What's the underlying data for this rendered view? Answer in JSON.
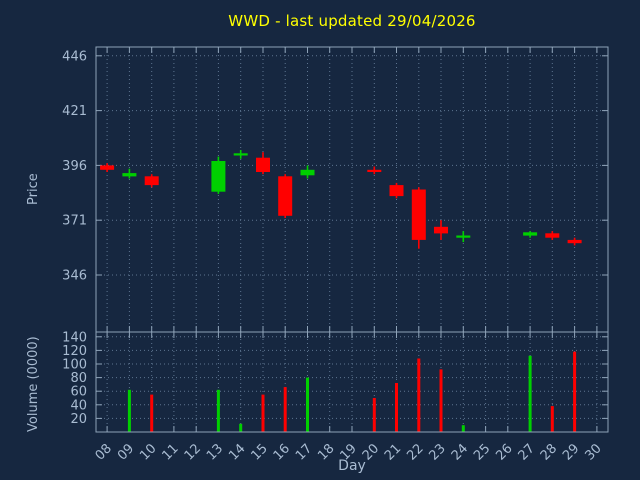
{
  "colors": {
    "background": "#162740",
    "title": "#ffff00",
    "axis_text": "#a9bcd2",
    "axis_line": "#8fa3b8",
    "grid": "#5e7590",
    "up": "#00d000",
    "down": "#ff0000"
  },
  "chart_data": {
    "type": "candlestick",
    "title": "WWD - last updated 29/04/2026",
    "xlabel": "Day",
    "grid": true,
    "legend": "none",
    "xlim": [
      7.5,
      30.5
    ],
    "xticks": [
      "08",
      "09",
      "10",
      "11",
      "12",
      "13",
      "14",
      "15",
      "16",
      "17",
      "18",
      "19",
      "20",
      "21",
      "22",
      "23",
      "24",
      "25",
      "26",
      "27",
      "28",
      "29",
      "30"
    ],
    "panels": [
      {
        "name": "price",
        "ylabel": "Price",
        "ylim": [
          320,
          450
        ],
        "yticks": [
          346,
          371,
          396,
          421,
          446
        ]
      },
      {
        "name": "volume",
        "ylabel": "Volume (0000)",
        "ylim": [
          0,
          147
        ],
        "yticks": [
          20,
          40,
          60,
          80,
          100,
          120,
          140
        ]
      }
    ],
    "ohlc": [
      {
        "day": 8,
        "open": 396,
        "high": 397,
        "low": 393,
        "close": 394
      },
      {
        "day": 9,
        "open": 391,
        "high": 394.5,
        "low": 390,
        "close": 392.5
      },
      {
        "day": 10,
        "open": 391,
        "high": 392,
        "low": 386,
        "close": 387
      },
      {
        "day": 13,
        "open": 384,
        "high": 400,
        "low": 383,
        "close": 398
      },
      {
        "day": 14,
        "open": 400.5,
        "high": 403,
        "low": 399,
        "close": 401.5
      },
      {
        "day": 15,
        "open": 399.5,
        "high": 402,
        "low": 392,
        "close": 393
      },
      {
        "day": 16,
        "open": 391,
        "high": 392,
        "low": 372,
        "close": 373
      },
      {
        "day": 17,
        "open": 391.5,
        "high": 396,
        "low": 390,
        "close": 394
      },
      {
        "day": 20,
        "open": 394,
        "high": 395.5,
        "low": 392,
        "close": 393
      },
      {
        "day": 21,
        "open": 387,
        "high": 388,
        "low": 381,
        "close": 382
      },
      {
        "day": 22,
        "open": 385,
        "high": 386,
        "low": 358,
        "close": 362
      },
      {
        "day": 23,
        "open": 368,
        "high": 371,
        "low": 362,
        "close": 365
      },
      {
        "day": 24,
        "open": 363,
        "high": 366,
        "low": 361,
        "close": 364
      },
      {
        "day": 27,
        "open": 364,
        "high": 366,
        "low": 363,
        "close": 365.5
      },
      {
        "day": 28,
        "open": 365,
        "high": 366,
        "low": 362,
        "close": 363
      },
      {
        "day": 29,
        "open": 362,
        "high": 363,
        "low": 359.5,
        "close": 360.5
      }
    ],
    "volume": [
      {
        "day": 9,
        "value": 62,
        "dir": "up"
      },
      {
        "day": 10,
        "value": 55,
        "dir": "down"
      },
      {
        "day": 13,
        "value": 62,
        "dir": "up"
      },
      {
        "day": 14,
        "value": 12,
        "dir": "up"
      },
      {
        "day": 15,
        "value": 55,
        "dir": "down"
      },
      {
        "day": 16,
        "value": 66,
        "dir": "down"
      },
      {
        "day": 17,
        "value": 80,
        "dir": "up"
      },
      {
        "day": 20,
        "value": 50,
        "dir": "down"
      },
      {
        "day": 21,
        "value": 72,
        "dir": "down"
      },
      {
        "day": 22,
        "value": 108,
        "dir": "down"
      },
      {
        "day": 23,
        "value": 92,
        "dir": "down"
      },
      {
        "day": 24,
        "value": 10,
        "dir": "up"
      },
      {
        "day": 27,
        "value": 112,
        "dir": "up"
      },
      {
        "day": 28,
        "value": 38,
        "dir": "down"
      },
      {
        "day": 29,
        "value": 118,
        "dir": "down"
      }
    ]
  }
}
